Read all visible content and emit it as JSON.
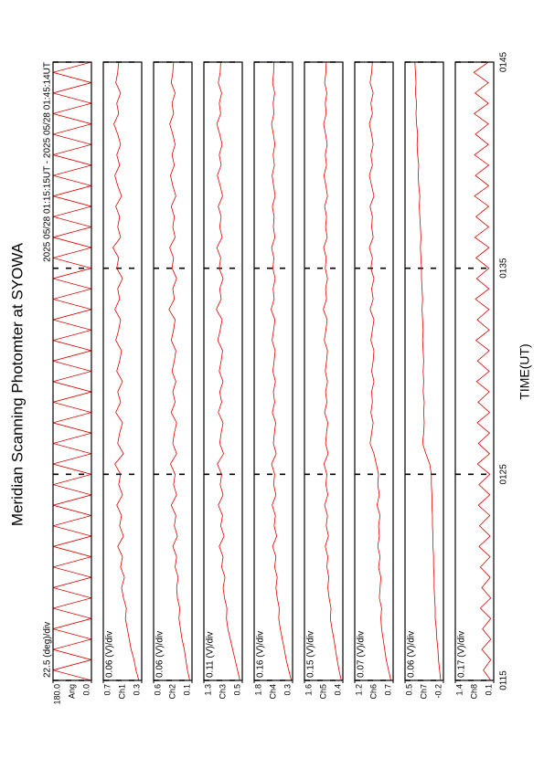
{
  "chart_data": {
    "type": "line",
    "title": "Meridian Scanning Photomter at SYOWA",
    "subtitle": "2025 05/28 01:15:15UT - 2025 05/28 01:45:14UT",
    "xlabel": "TIME(UT)",
    "color": "#e00000",
    "xlim": [
      15,
      45
    ],
    "xticks": [
      {
        "value": 15,
        "label": "0115"
      },
      {
        "value": 25,
        "label": "0125"
      },
      {
        "value": 35,
        "label": "0135"
      },
      {
        "value": 45,
        "label": "0145"
      }
    ],
    "x": [
      15,
      15.5,
      16,
      16.5,
      17,
      17.5,
      18,
      18.5,
      19,
      19.5,
      20,
      20.5,
      21,
      21.5,
      22,
      22.5,
      23,
      23.5,
      24,
      24.5,
      25,
      25.5,
      26,
      26.5,
      27,
      27.5,
      28,
      28.5,
      29,
      29.5,
      30,
      30.5,
      31,
      31.5,
      32,
      32.5,
      33,
      33.5,
      34,
      34.5,
      35,
      35.5,
      36,
      36.5,
      37,
      37.5,
      38,
      38.5,
      39,
      39.5,
      40,
      40.5,
      41,
      41.5,
      42,
      42.5,
      43,
      43.5,
      44,
      44.5,
      45
    ],
    "panels": [
      {
        "scale": "22.5 (deg)/div",
        "unit": "Ang",
        "ylim": [
          0,
          180
        ],
        "yticks": [
          {
            "value": 0,
            "label": "0.0"
          },
          {
            "value": 180,
            "label": "180.0"
          }
        ],
        "values": [
          0,
          180,
          0,
          180,
          0,
          180,
          0,
          180,
          0,
          180,
          0,
          180,
          0,
          180,
          0,
          180,
          0,
          180,
          0,
          180,
          0,
          180,
          0,
          180,
          0,
          180,
          0,
          180,
          0,
          180,
          0,
          180,
          0,
          180,
          0,
          180,
          0,
          180,
          0,
          180,
          0,
          180,
          0,
          180,
          0,
          180,
          0,
          180,
          0,
          180,
          0,
          180,
          0,
          180,
          0,
          180,
          0,
          180,
          0,
          180,
          0
        ]
      },
      {
        "scale": "0.06 (V)/div",
        "unit": "Ch1",
        "ylim": [
          0.3,
          0.7
        ],
        "yticks": [
          0.3,
          0.7
        ],
        "values": [
          0.33,
          0.36,
          0.38,
          0.41,
          0.43,
          0.45,
          0.47,
          0.46,
          0.49,
          0.51,
          0.48,
          0.52,
          0.5,
          0.55,
          0.49,
          0.53,
          0.51,
          0.56,
          0.5,
          0.54,
          0.52,
          0.58,
          0.49,
          0.55,
          0.53,
          0.5,
          0.57,
          0.52,
          0.55,
          0.5,
          0.56,
          0.53,
          0.51,
          0.57,
          0.54,
          0.52,
          0.58,
          0.53,
          0.55,
          0.5,
          0.56,
          0.54,
          0.6,
          0.52,
          0.55,
          0.53,
          0.57,
          0.51,
          0.55,
          0.58,
          0.53,
          0.56,
          0.52,
          0.55,
          0.59,
          0.54,
          0.56,
          0.52,
          0.57,
          0.55,
          0.54
        ]
      },
      {
        "scale": "0.06 (V)/div",
        "unit": "Ch2",
        "ylim": [
          0.1,
          0.6
        ],
        "yticks": [
          0.1,
          0.6
        ],
        "values": [
          0.13,
          0.16,
          0.18,
          0.2,
          0.23,
          0.25,
          0.27,
          0.26,
          0.29,
          0.3,
          0.28,
          0.32,
          0.3,
          0.35,
          0.29,
          0.33,
          0.31,
          0.37,
          0.3,
          0.34,
          0.32,
          0.38,
          0.3,
          0.35,
          0.33,
          0.3,
          0.37,
          0.32,
          0.35,
          0.31,
          0.36,
          0.33,
          0.31,
          0.37,
          0.34,
          0.32,
          0.4,
          0.33,
          0.35,
          0.3,
          0.36,
          0.34,
          0.39,
          0.32,
          0.35,
          0.33,
          0.37,
          0.31,
          0.35,
          0.38,
          0.33,
          0.36,
          0.32,
          0.35,
          0.39,
          0.34,
          0.36,
          0.32,
          0.37,
          0.35,
          0.34
        ]
      },
      {
        "scale": "0.11 (V)/div",
        "unit": "Ch3",
        "ylim": [
          0.5,
          1.3
        ],
        "yticks": [
          0.5,
          1.3
        ],
        "values": [
          0.55,
          0.6,
          0.65,
          0.7,
          0.75,
          0.8,
          0.83,
          0.82,
          0.87,
          0.9,
          0.86,
          0.93,
          0.9,
          0.98,
          0.88,
          0.95,
          0.91,
          1.0,
          0.9,
          0.96,
          0.93,
          1.02,
          0.89,
          0.97,
          0.94,
          0.9,
          1.0,
          0.93,
          0.97,
          0.9,
          0.98,
          0.94,
          0.91,
          1.01,
          0.96,
          0.92,
          1.04,
          0.94,
          0.97,
          0.9,
          0.98,
          0.95,
          1.03,
          0.92,
          0.97,
          0.94,
          1.0,
          0.91,
          0.96,
          1.02,
          0.94,
          0.98,
          0.92,
          0.97,
          1.03,
          0.95,
          0.98,
          0.93,
          1.0,
          0.96,
          0.95
        ]
      },
      {
        "scale": "0.16 (V)/div",
        "unit": "Ch4",
        "ylim": [
          0.3,
          1.8
        ],
        "yticks": [
          0.3,
          1.8
        ],
        "values": [
          0.35,
          0.45,
          0.55,
          0.62,
          0.7,
          0.78,
          0.84,
          0.82,
          0.9,
          0.95,
          0.9,
          1.0,
          0.95,
          1.08,
          0.92,
          1.02,
          0.97,
          1.1,
          0.95,
          1.04,
          1.0,
          1.12,
          0.94,
          1.05,
          1.01,
          0.96,
          1.09,
          1.0,
          1.05,
          0.97,
          1.07,
          1.02,
          0.98,
          1.1,
          1.04,
          0.99,
          1.14,
          1.02,
          1.06,
          0.98,
          1.07,
          1.03,
          1.12,
          0.99,
          1.05,
          1.02,
          1.09,
          0.98,
          1.04,
          1.1,
          1.01,
          1.06,
          0.99,
          1.05,
          1.12,
          1.03,
          1.06,
          1.0,
          1.08,
          1.04,
          1.03
        ]
      },
      {
        "scale": "0.15 (V)/div",
        "unit": "Ch5",
        "ylim": [
          0.4,
          1.6
        ],
        "yticks": [
          0.4,
          1.6
        ],
        "values": [
          0.45,
          0.52,
          0.58,
          0.63,
          0.68,
          0.74,
          0.79,
          0.77,
          0.83,
          0.87,
          0.84,
          0.9,
          0.87,
          0.95,
          0.85,
          0.92,
          0.88,
          0.97,
          0.87,
          0.93,
          0.9,
          0.99,
          0.86,
          0.94,
          0.91,
          0.87,
          0.97,
          0.9,
          0.94,
          0.88,
          0.95,
          0.91,
          0.88,
          0.98,
          0.93,
          0.89,
          1.01,
          0.91,
          0.94,
          0.88,
          0.95,
          0.92,
          1.0,
          0.89,
          0.94,
          0.91,
          0.97,
          0.88,
          0.93,
          0.99,
          0.91,
          0.95,
          0.89,
          0.94,
          1.0,
          0.92,
          0.95,
          0.9,
          0.97,
          0.93,
          0.92
        ]
      },
      {
        "scale": "0.07 (V)/div",
        "unit": "Ch6",
        "ylim": [
          0.7,
          1.2
        ],
        "yticks": [
          0.7,
          1.2
        ],
        "values": [
          0.73,
          0.76,
          0.79,
          0.81,
          0.83,
          0.85,
          0.86,
          0.85,
          0.88,
          0.87,
          0.86,
          0.89,
          0.87,
          0.9,
          0.88,
          0.89,
          0.87,
          0.91,
          0.88,
          0.9,
          0.89,
          0.92,
          0.95,
          1.0,
          0.98,
          0.96,
          0.99,
          0.97,
          0.98,
          0.95,
          0.98,
          0.96,
          0.95,
          0.99,
          0.97,
          0.95,
          1.0,
          0.96,
          0.98,
          0.95,
          0.99,
          0.97,
          1.01,
          0.96,
          0.98,
          0.97,
          1.0,
          0.95,
          0.98,
          1.01,
          0.97,
          0.99,
          0.96,
          0.98,
          1.01,
          0.97,
          0.99,
          0.96,
          1.0,
          0.98,
          0.97
        ]
      },
      {
        "scale": "0.06 (V)/div",
        "unit": "Ch7",
        "ylim": [
          -0.2,
          0.5
        ],
        "yticks": [
          -0.2,
          0.5
        ],
        "values": [
          -0.15,
          -0.13,
          -0.11,
          -0.1,
          -0.08,
          -0.07,
          -0.05,
          -0.05,
          -0.04,
          -0.03,
          -0.03,
          -0.02,
          -0.02,
          -0.01,
          -0.01,
          0.0,
          0.0,
          0.01,
          0.01,
          0.02,
          0.02,
          0.05,
          0.12,
          0.18,
          0.16,
          0.15,
          0.16,
          0.15,
          0.17,
          0.16,
          0.17,
          0.16,
          0.17,
          0.18,
          0.17,
          0.18,
          0.19,
          0.18,
          0.19,
          0.2,
          0.2,
          0.21,
          0.22,
          0.21,
          0.22,
          0.23,
          0.24,
          0.23,
          0.25,
          0.26,
          0.25,
          0.27,
          0.28,
          0.27,
          0.29,
          0.3,
          0.29,
          0.31,
          0.3,
          0.31,
          0.32
        ]
      },
      {
        "scale": "0.17 (V)/div",
        "unit": "Ch8",
        "ylim": [
          0.1,
          1.4
        ],
        "yticks": [
          0.1,
          1.4
        ],
        "values": [
          0.2,
          0.45,
          0.2,
          0.5,
          0.2,
          0.48,
          0.2,
          0.55,
          0.2,
          0.5,
          0.22,
          0.55,
          0.22,
          0.6,
          0.22,
          0.58,
          0.23,
          0.62,
          0.23,
          0.6,
          0.23,
          0.65,
          0.24,
          0.62,
          0.24,
          0.66,
          0.24,
          0.63,
          0.25,
          0.68,
          0.25,
          0.65,
          0.25,
          0.7,
          0.25,
          0.66,
          0.26,
          0.72,
          0.26,
          0.68,
          0.26,
          0.7,
          0.26,
          0.74,
          0.27,
          0.7,
          0.27,
          0.75,
          0.27,
          0.72,
          0.27,
          0.75,
          0.28,
          0.72,
          0.28,
          0.76,
          0.28,
          0.73,
          0.28,
          0.77,
          0.28
        ]
      }
    ]
  }
}
